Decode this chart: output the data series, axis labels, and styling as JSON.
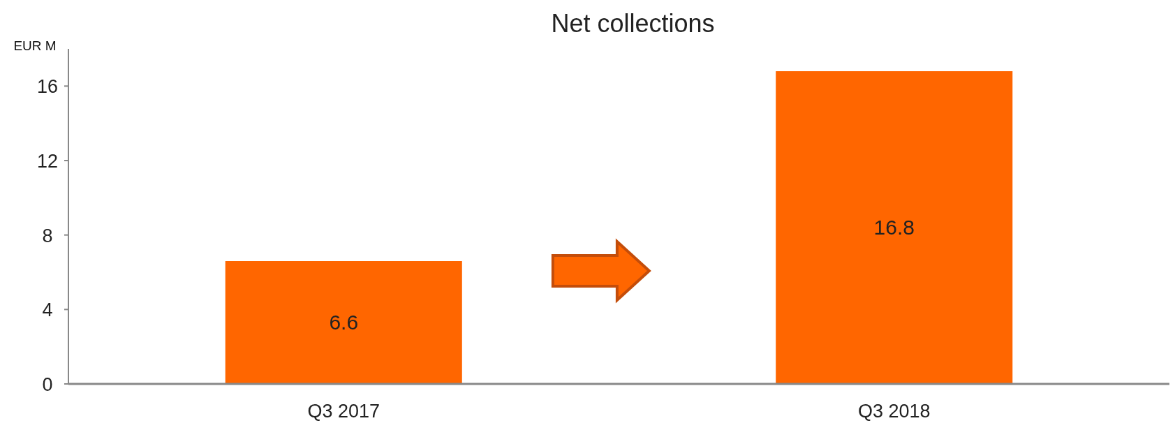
{
  "chart_data": {
    "type": "bar",
    "title": "Net collections",
    "ylabel": "EUR M",
    "categories": [
      "Q3 2017",
      "Q3 2018"
    ],
    "values": [
      6.6,
      16.8
    ],
    "color": "#ff6600",
    "ylim": [
      0,
      18
    ],
    "yticks": [
      0,
      4,
      8,
      12,
      16
    ],
    "data_labels": true
  }
}
